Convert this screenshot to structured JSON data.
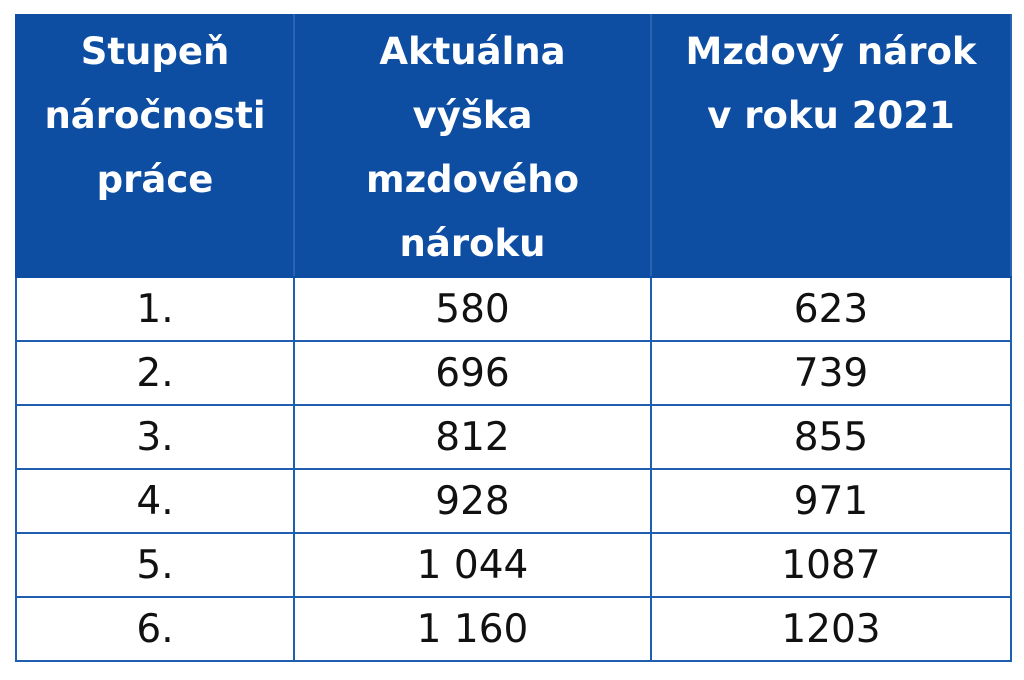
{
  "table": {
    "header": [
      [
        "Stupeň",
        "náročnosti",
        "práce"
      ],
      [
        "Aktuálna",
        "výška",
        "mzdového",
        "nároku"
      ],
      [
        "Mzdový nárok",
        "v roku 2021"
      ]
    ],
    "rows": [
      [
        "1.",
        "580",
        "623"
      ],
      [
        "2.",
        "696",
        "739"
      ],
      [
        "3.",
        "812",
        "855"
      ],
      [
        "4.",
        "928",
        "971"
      ],
      [
        "5.",
        "1 044",
        "1087"
      ],
      [
        "6.",
        "1 160",
        "1203"
      ]
    ]
  }
}
